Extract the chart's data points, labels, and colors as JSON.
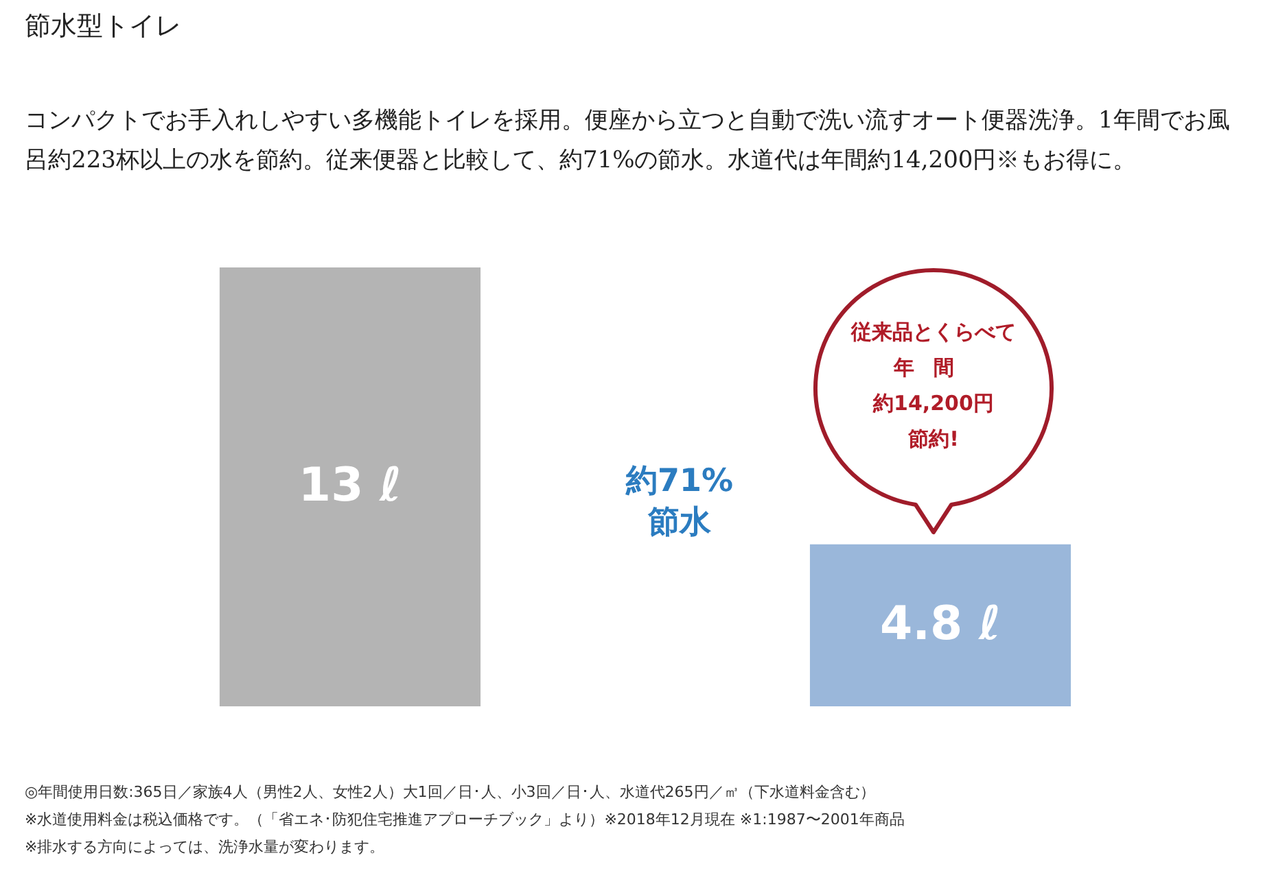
{
  "chart_data": {
    "type": "bar",
    "title": "節水型トイレ",
    "subtitle": "コンパクトでお手入れしやすい多機能トイレを採用。便座から立つと自動で洗い流すオート便器洗浄。1年間でお風呂約223杯以上の水を節約。従来便器と比較して、約71%の節水。水道代は年間約14,200円※もお得に。",
    "categories": [
      null,
      null
    ],
    "values": [
      13,
      4.8
    ],
    "colors": [
      "#b4b4b4",
      "#9ab7da"
    ],
    "value_labels": [
      "13 ℓ",
      "4.8 ℓ"
    ],
    "annotations": [
      "約71%",
      "節水",
      "従来品とくらべて",
      "年間",
      "約14,200円",
      "節約!",
      "◎年間使用日数:365日／家族4人（男性2人、女性2人）大1回／日･人、小3回／日･人、水道代265円／㎥（下水道料金含む）",
      "※水道使用料金は税込価格です。（「省エネ･防犯住宅推進アプローチブック」より）※2018年12月現在 ※1:1987〜2001年商品",
      "※排水する方向によっては、洗浄水量が変わります。"
    ]
  }
}
